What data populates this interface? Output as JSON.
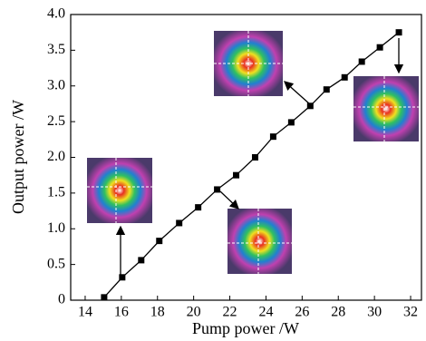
{
  "chart_data": {
    "type": "line",
    "x_label": "Pump power /W",
    "y_label": "Output power /W",
    "x": [
      15.05,
      16.05,
      17.1,
      18.1,
      19.2,
      20.25,
      21.3,
      22.35,
      23.4,
      24.4,
      25.4,
      26.45,
      27.35,
      28.35,
      29.3,
      30.3,
      31.35
    ],
    "series": [
      {
        "color": "#000000",
        "values": [
          0.04,
          0.32,
          0.56,
          0.83,
          1.08,
          1.3,
          1.55,
          1.75,
          2.0,
          2.29,
          2.49,
          2.72,
          2.95,
          3.12,
          3.34,
          3.54,
          3.75
        ]
      }
    ],
    "xlim": [
      13.2,
      32.6
    ],
    "ylim": [
      0,
      4.0
    ],
    "xticks": [
      14,
      16,
      18,
      20,
      22,
      24,
      26,
      28,
      30,
      32
    ],
    "yticks": [
      0,
      0.5,
      {
        "value": 1.0,
        "label": "1.0"
      },
      1.5,
      {
        "value": 2.0,
        "label": "2.0"
      },
      2.5,
      {
        "value": 3.0,
        "label": "3.0"
      },
      3.5,
      {
        "value": 4.0,
        "label": "4.0"
      }
    ]
  }
}
